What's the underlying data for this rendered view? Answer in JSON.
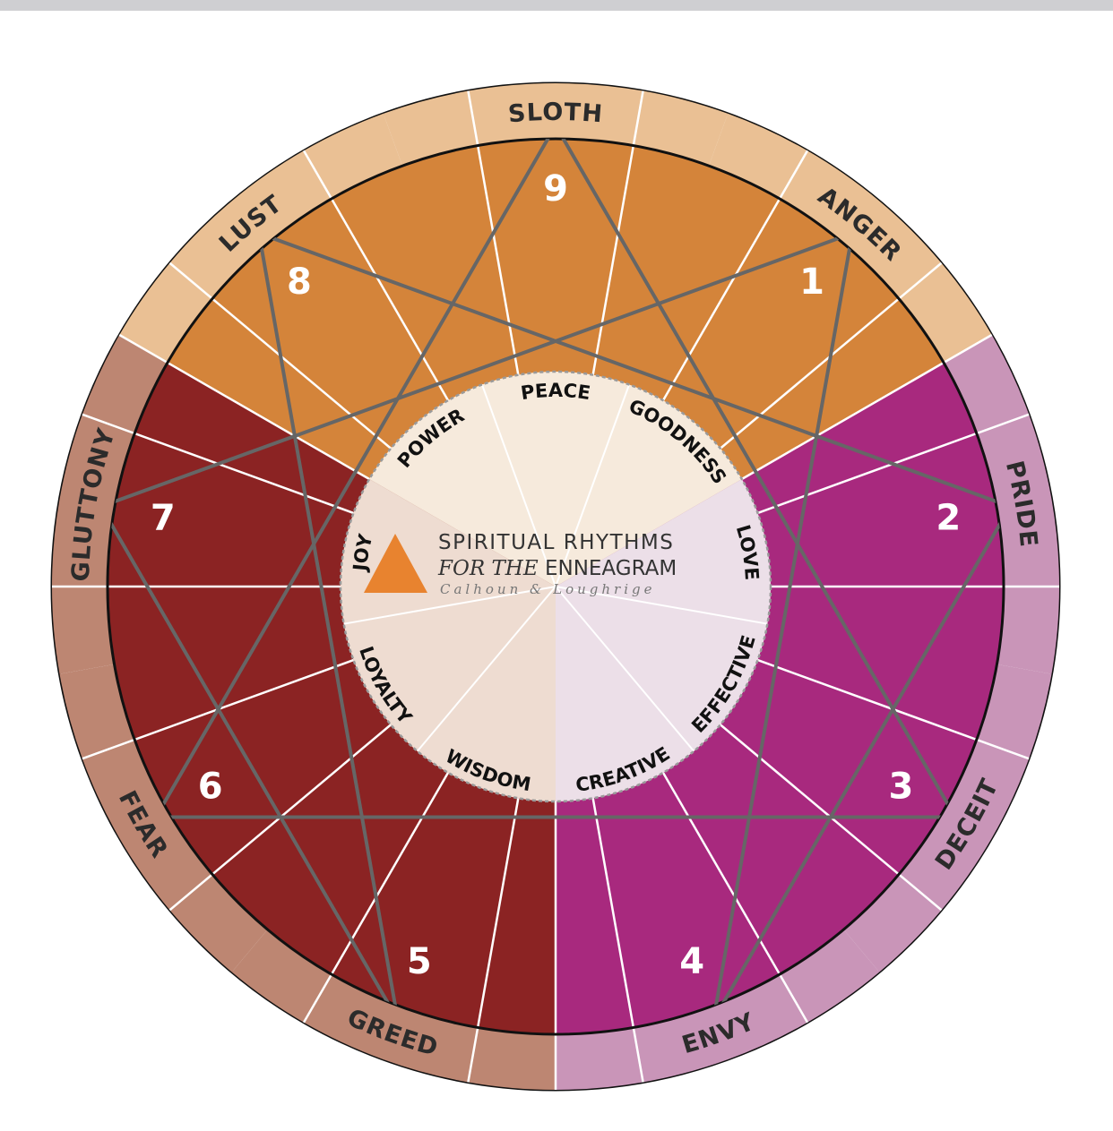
{
  "outer_ring": [
    {
      "label": "SLOTH",
      "angle": 0,
      "color": "#eac094"
    },
    {
      "label": "ANGER",
      "angle": 40,
      "color": "#eac094"
    },
    {
      "label": "PRIDE",
      "angle": 80,
      "color": "#c995b8"
    },
    {
      "label": "DECEIT",
      "angle": 120,
      "color": "#c995b8"
    },
    {
      "label": "ENVY",
      "angle": 160,
      "color": "#c995b8"
    },
    {
      "label": "GREED",
      "angle": 200,
      "color": "#bd8672"
    },
    {
      "label": "FEAR",
      "angle": 240,
      "color": "#bd8672"
    },
    {
      "label": "GLUTTONY",
      "angle": 280,
      "color": "#bd8672"
    },
    {
      "label": "LUST",
      "angle": 320,
      "color": "#eac094"
    }
  ],
  "sections": [
    {
      "name": "head-center",
      "start": -60,
      "end": 60,
      "color": "#d4843a"
    },
    {
      "name": "heart-center",
      "start": 60,
      "end": 180,
      "color": "#a8297e"
    },
    {
      "name": "gut-center",
      "start": 180,
      "end": 300,
      "color": "#8b2323"
    }
  ],
  "numbers": [
    {
      "label": "9",
      "angle": 0
    },
    {
      "label": "1",
      "angle": 40
    },
    {
      "label": "2",
      "angle": 80
    },
    {
      "label": "3",
      "angle": 120
    },
    {
      "label": "4",
      "angle": 160
    },
    {
      "label": "5",
      "angle": 200
    },
    {
      "label": "6",
      "angle": 240
    },
    {
      "label": "7",
      "angle": 280
    },
    {
      "label": "8",
      "angle": 320
    }
  ],
  "inner_words": [
    {
      "label": "PEACE",
      "angle": 0
    },
    {
      "label": "GOODNESS",
      "angle": 40
    },
    {
      "label": "LOVE",
      "angle": 80
    },
    {
      "label": "EFFECTIVE",
      "angle": 120
    },
    {
      "label": "CREATIVE",
      "angle": 160
    },
    {
      "label": "WISDOM",
      "angle": 200
    },
    {
      "label": "LOYALTY",
      "angle": 240
    },
    {
      "label": "JOY",
      "angle": 280
    },
    {
      "label": "POWER",
      "angle": 320
    }
  ],
  "inner_colors": {
    "head": "#f6eadc",
    "heart": "#ecdfe8",
    "gut": "#eedcd1"
  },
  "logo": {
    "line1": "SPIRITUAL RHYTHMS",
    "line2_italic": "FOR THE",
    "line2_plain": " ENNEAGRAM",
    "line3": "Calhoun & Loughrige",
    "triangle_color": "#e8832f"
  },
  "line_color": "#666666"
}
